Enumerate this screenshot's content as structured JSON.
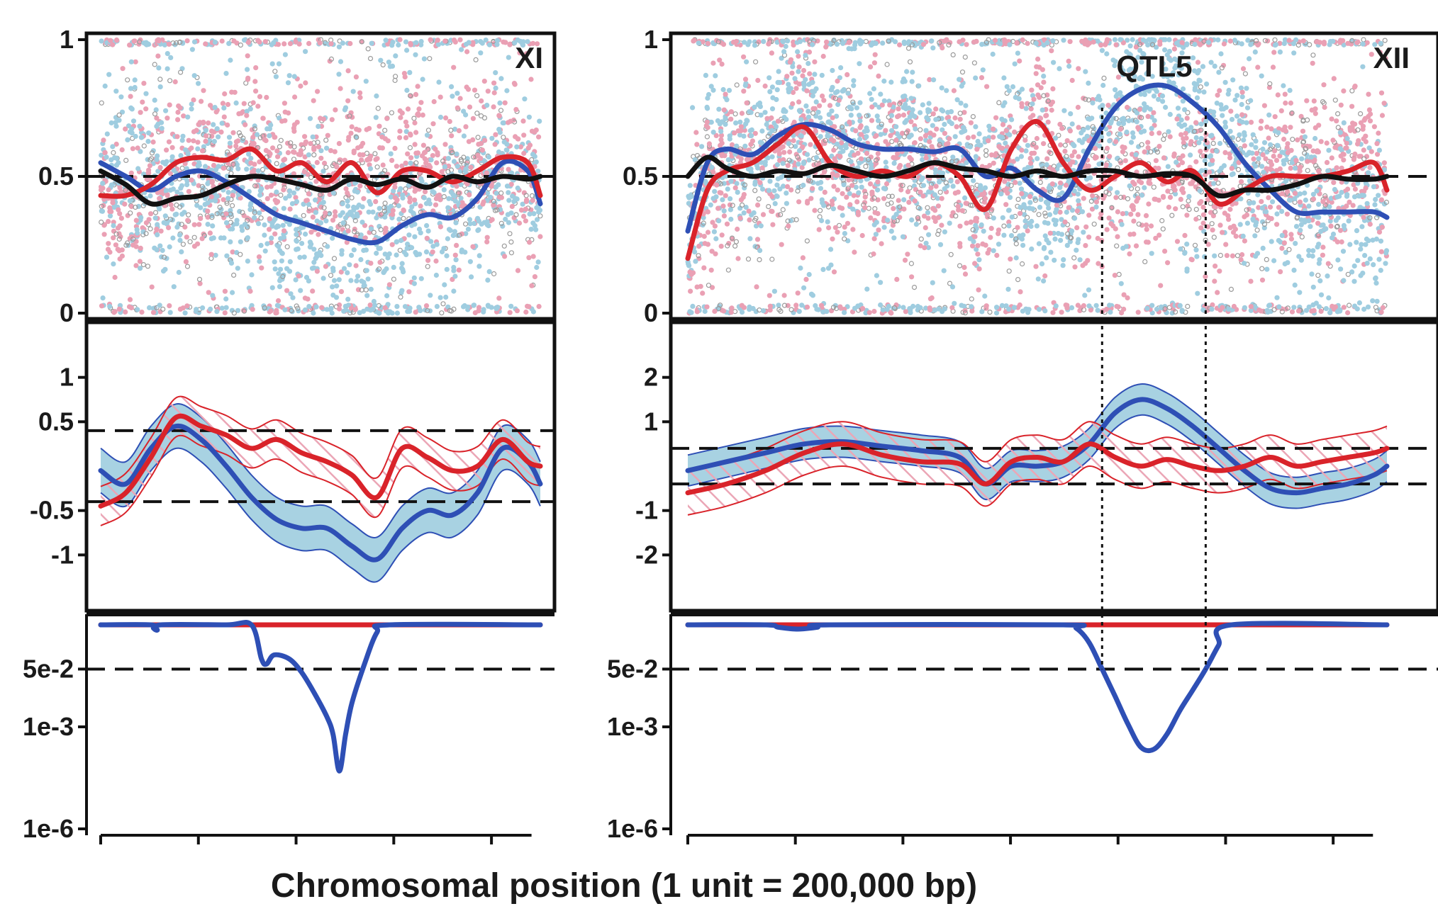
{
  "colors": {
    "blue": "#2e4fb5",
    "red": "#d9232a",
    "black": "#111111",
    "blue_points": "#9fcde0",
    "pink_points": "#eaa0b4",
    "grey_points": "#9a9a9a",
    "blue_band": "#a8d2e2",
    "pink_hatch": "#eba6b6"
  },
  "xlabel": "Chromosomal position (1 unit = 200,000 bp)",
  "chart_data": [
    {
      "type": "line",
      "chromosome": "XI",
      "qtl_label": "",
      "x_range": [
        0,
        3.5
      ],
      "top": {
        "ylim": [
          0,
          1
        ],
        "ticks": [
          "1",
          "0.5",
          "0"
        ],
        "tick_values": [
          1,
          0.5,
          0
        ],
        "threshold": 0.5,
        "series": [
          {
            "color": "blue",
            "x": [
              0,
              0.2,
              0.4,
              0.6,
              0.8,
              1.0,
              1.2,
              1.4,
              1.6,
              1.8,
              2.0,
              2.2,
              2.4,
              2.6,
              2.8,
              3.0,
              3.2,
              3.4,
              3.5
            ],
            "y": [
              0.55,
              0.5,
              0.45,
              0.5,
              0.52,
              0.48,
              0.42,
              0.36,
              0.33,
              0.3,
              0.27,
              0.26,
              0.32,
              0.36,
              0.35,
              0.42,
              0.55,
              0.52,
              0.4
            ]
          },
          {
            "color": "red",
            "x": [
              0,
              0.2,
              0.4,
              0.6,
              0.8,
              1.0,
              1.2,
              1.4,
              1.6,
              1.8,
              2.0,
              2.2,
              2.4,
              2.6,
              2.8,
              3.0,
              3.2,
              3.4,
              3.5
            ],
            "y": [
              0.43,
              0.43,
              0.47,
              0.55,
              0.57,
              0.56,
              0.6,
              0.52,
              0.55,
              0.48,
              0.55,
              0.44,
              0.52,
              0.52,
              0.48,
              0.52,
              0.57,
              0.55,
              0.43
            ]
          },
          {
            "color": "black",
            "x": [
              0,
              0.2,
              0.4,
              0.6,
              0.8,
              1.0,
              1.2,
              1.4,
              1.6,
              1.8,
              2.0,
              2.2,
              2.4,
              2.6,
              2.8,
              3.0,
              3.2,
              3.4,
              3.5
            ],
            "y": [
              0.52,
              0.47,
              0.4,
              0.42,
              0.43,
              0.47,
              0.5,
              0.49,
              0.47,
              0.45,
              0.49,
              0.47,
              0.49,
              0.46,
              0.5,
              0.48,
              0.5,
              0.49,
              0.5
            ]
          }
        ]
      },
      "middle": {
        "ylim": [
          -1.5,
          1.5
        ],
        "ticks": [
          "1",
          "0.5",
          "-0.5",
          "-1"
        ],
        "tick_values": [
          1,
          0.5,
          -0.5,
          -1
        ],
        "thresholds": [
          0.4,
          -0.4
        ],
        "series": [
          {
            "color": "blue",
            "band_width": 0.25,
            "x": [
              0,
              0.2,
              0.4,
              0.6,
              0.8,
              1.0,
              1.2,
              1.4,
              1.6,
              1.8,
              2.0,
              2.2,
              2.4,
              2.6,
              2.8,
              3.0,
              3.2,
              3.4,
              3.5
            ],
            "y": [
              -0.05,
              -0.2,
              0.2,
              0.45,
              0.3,
              0.0,
              -0.35,
              -0.6,
              -0.7,
              -0.7,
              -0.9,
              -1.05,
              -0.7,
              -0.5,
              -0.55,
              -0.3,
              0.2,
              0.05,
              -0.2
            ]
          },
          {
            "color": "red",
            "band_width": 0.22,
            "x": [
              0,
              0.2,
              0.4,
              0.6,
              0.8,
              1.0,
              1.2,
              1.4,
              1.6,
              1.8,
              2.0,
              2.2,
              2.4,
              2.6,
              2.8,
              3.0,
              3.2,
              3.4,
              3.5
            ],
            "y": [
              -0.45,
              -0.3,
              0.1,
              0.55,
              0.45,
              0.35,
              0.2,
              0.3,
              0.15,
              0.05,
              -0.1,
              -0.35,
              0.2,
              0.1,
              -0.05,
              0.0,
              0.3,
              0.05,
              0.0
            ]
          }
        ]
      },
      "bottom": {
        "ylim": [
          1e-06,
          1
        ],
        "scale": "log",
        "ticks": [
          "5e-2",
          "1e-3",
          "1e-6"
        ],
        "tick_values": [
          0.05,
          0.001,
          1e-06
        ],
        "threshold": 0.05,
        "series": [
          {
            "color": "red",
            "x": [
              0,
              3.5
            ],
            "y": [
              1,
              1
            ]
          },
          {
            "color": "blue",
            "x": [
              0,
              0.4,
              0.42,
              0.45,
              0.48,
              1.0,
              1.2,
              1.28,
              1.32,
              1.38,
              1.5,
              1.6,
              1.7,
              1.8,
              1.85,
              1.9,
              1.95,
              2.0,
              2.1,
              2.2,
              2.3,
              3.5
            ],
            "y": [
              1,
              1,
              0.8,
              0.7,
              1,
              1,
              1,
              0.1,
              0.07,
              0.13,
              0.1,
              0.04,
              0.01,
              0.002,
              0.0006,
              5e-05,
              0.0006,
              0.005,
              0.07,
              0.6,
              1,
              1
            ]
          }
        ]
      }
    },
    {
      "type": "line",
      "chromosome": "XII",
      "qtl_label": "QTL5",
      "x_range": [
        0,
        5.4
      ],
      "qtl_bounds": [
        3.2,
        4.0
      ],
      "top": {
        "ylim": [
          0,
          1
        ],
        "ticks": [
          "1",
          "0.5",
          "0"
        ],
        "tick_values": [
          1,
          0.5,
          0
        ],
        "threshold": 0.5,
        "series": [
          {
            "color": "blue",
            "x": [
              0,
              0.15,
              0.3,
              0.5,
              0.7,
              0.9,
              1.1,
              1.3,
              1.5,
              1.7,
              1.9,
              2.1,
              2.3,
              2.5,
              2.7,
              2.9,
              3.1,
              3.3,
              3.5,
              3.7,
              3.9,
              4.1,
              4.3,
              4.5,
              4.7,
              4.9,
              5.1,
              5.3,
              5.4
            ],
            "y": [
              0.3,
              0.55,
              0.6,
              0.58,
              0.65,
              0.69,
              0.67,
              0.62,
              0.6,
              0.6,
              0.59,
              0.6,
              0.5,
              0.53,
              0.45,
              0.42,
              0.6,
              0.75,
              0.82,
              0.83,
              0.77,
              0.68,
              0.55,
              0.45,
              0.37,
              0.37,
              0.37,
              0.37,
              0.35
            ]
          },
          {
            "color": "red",
            "x": [
              0,
              0.15,
              0.3,
              0.5,
              0.7,
              0.9,
              1.1,
              1.3,
              1.5,
              1.7,
              1.9,
              2.1,
              2.3,
              2.5,
              2.7,
              2.9,
              3.1,
              3.3,
              3.5,
              3.7,
              3.9,
              4.1,
              4.3,
              4.5,
              4.7,
              4.9,
              5.1,
              5.3,
              5.4
            ],
            "y": [
              0.2,
              0.45,
              0.52,
              0.55,
              0.62,
              0.68,
              0.55,
              0.5,
              0.52,
              0.5,
              0.55,
              0.5,
              0.38,
              0.6,
              0.7,
              0.55,
              0.45,
              0.5,
              0.55,
              0.48,
              0.52,
              0.4,
              0.45,
              0.5,
              0.5,
              0.5,
              0.52,
              0.55,
              0.45
            ]
          },
          {
            "color": "black",
            "x": [
              0,
              0.15,
              0.3,
              0.5,
              0.7,
              0.9,
              1.1,
              1.3,
              1.5,
              1.7,
              1.9,
              2.1,
              2.3,
              2.5,
              2.7,
              2.9,
              3.1,
              3.3,
              3.5,
              3.7,
              3.9,
              4.1,
              4.3,
              4.5,
              4.7,
              4.9,
              5.1,
              5.3,
              5.4
            ],
            "y": [
              0.5,
              0.57,
              0.53,
              0.5,
              0.52,
              0.51,
              0.54,
              0.52,
              0.5,
              0.52,
              0.55,
              0.53,
              0.52,
              0.5,
              0.52,
              0.5,
              0.52,
              0.52,
              0.5,
              0.51,
              0.5,
              0.43,
              0.45,
              0.45,
              0.47,
              0.5,
              0.49,
              0.49,
              0.5
            ]
          }
        ]
      },
      "middle": {
        "ylim": [
          -3,
          3
        ],
        "ticks": [
          "2",
          "1",
          "-1",
          "-2"
        ],
        "tick_values": [
          2,
          1,
          -1,
          -2
        ],
        "thresholds": [
          0.4,
          -0.4
        ],
        "series": [
          {
            "color": "blue",
            "band_width": 0.35,
            "x": [
              0,
              0.3,
              0.6,
              0.9,
              1.2,
              1.5,
              1.8,
              2.1,
              2.3,
              2.5,
              2.7,
              2.9,
              3.1,
              3.3,
              3.5,
              3.7,
              3.9,
              4.1,
              4.3,
              4.5,
              4.7,
              4.9,
              5.1,
              5.3,
              5.4
            ],
            "y": [
              -0.1,
              0.1,
              0.3,
              0.5,
              0.55,
              0.45,
              0.35,
              0.2,
              -0.4,
              0.0,
              0.0,
              0.1,
              0.5,
              1.2,
              1.5,
              1.3,
              0.9,
              0.4,
              -0.1,
              -0.5,
              -0.6,
              -0.5,
              -0.4,
              -0.2,
              0.0
            ]
          },
          {
            "color": "red",
            "band_width": 0.5,
            "x": [
              0,
              0.3,
              0.6,
              0.9,
              1.2,
              1.5,
              1.8,
              2.1,
              2.3,
              2.5,
              2.7,
              2.9,
              3.1,
              3.3,
              3.5,
              3.7,
              3.9,
              4.1,
              4.3,
              4.5,
              4.7,
              4.9,
              5.1,
              5.3,
              5.4
            ],
            "y": [
              -0.6,
              -0.4,
              -0.1,
              0.3,
              0.5,
              0.25,
              0.1,
              0.05,
              -0.4,
              0.1,
              0.2,
              0.1,
              0.5,
              0.2,
              0.0,
              0.15,
              0.0,
              -0.1,
              0.0,
              0.2,
              0.0,
              0.1,
              0.2,
              0.3,
              0.4
            ]
          }
        ]
      },
      "bottom": {
        "ylim": [
          1e-06,
          1
        ],
        "scale": "log",
        "ticks": [
          "5e-2",
          "1e-3",
          "1e-6"
        ],
        "tick_values": [
          0.05,
          0.001,
          1e-06
        ],
        "threshold": 0.05,
        "series": [
          {
            "color": "red",
            "x": [
              0,
              5.4
            ],
            "y": [
              1,
              1
            ]
          },
          {
            "color": "blue",
            "x": [
              0,
              0.6,
              0.7,
              0.85,
              1.0,
              1.1,
              2.9,
              3.0,
              3.1,
              3.2,
              3.3,
              3.4,
              3.5,
              3.6,
              3.7,
              3.8,
              3.9,
              4.0,
              4.1,
              4.2,
              5.4
            ],
            "y": [
              1,
              1,
              0.85,
              0.75,
              0.85,
              1,
              1,
              0.8,
              0.3,
              0.05,
              0.008,
              0.0012,
              0.00025,
              0.00022,
              0.0006,
              0.003,
              0.012,
              0.05,
              0.25,
              1,
              1
            ]
          }
        ]
      }
    }
  ]
}
